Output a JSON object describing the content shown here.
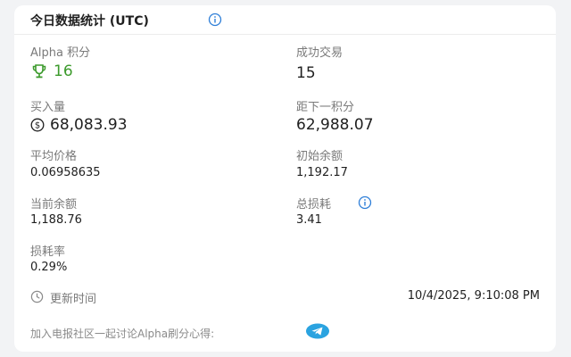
{
  "header": {
    "title": "今日数据统计 (UTC)"
  },
  "stats": {
    "alpha_points": {
      "label": "Alpha 积分",
      "value": "16"
    },
    "successful_trades": {
      "label": "成功交易",
      "value": "15"
    },
    "buy_volume": {
      "label": "买入量",
      "value": "68,083.93"
    },
    "to_next_point": {
      "label": "距下一积分",
      "value": "62,988.07"
    },
    "average_price": {
      "label": "平均价格",
      "value": "0.06958635"
    },
    "initial_balance": {
      "label": "初始余额",
      "value": "1,192.17"
    },
    "current_balance": {
      "label": "当前余额",
      "value": "1,188.76"
    },
    "total_loss": {
      "label": "总损耗",
      "value": "3.41"
    },
    "loss_rate": {
      "label": "损耗率",
      "value": "0.29%"
    }
  },
  "update": {
    "label": "更新时间",
    "timestamp": "10/4/2025, 9:10:08 PM"
  },
  "community": {
    "text": "加入电报社区一起讨论Alpha刷分心得:"
  },
  "colors": {
    "accent_blue": "#2f7fd8",
    "points_green": "#3c9a2c",
    "telegram_blue": "#2aa3e0"
  },
  "icons": {
    "info": "info-icon",
    "trophy": "trophy-icon",
    "dollar": "dollar-circle-icon",
    "clock": "clock-icon",
    "telegram": "telegram-icon"
  }
}
